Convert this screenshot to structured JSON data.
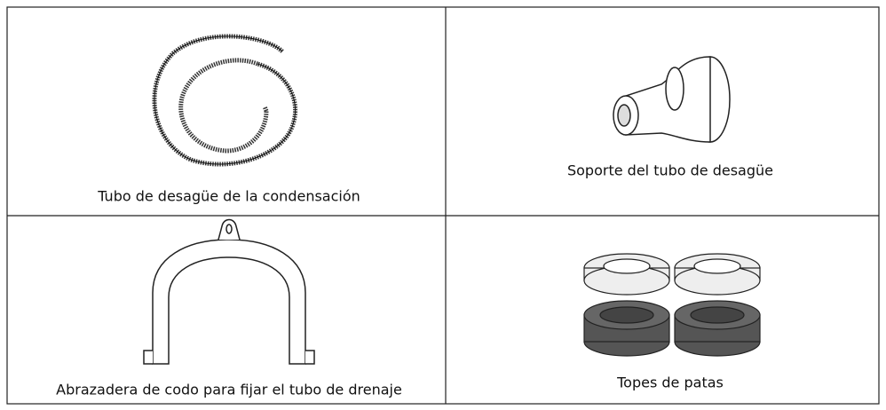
{
  "table": {
    "rows": [
      [
        "Tubo de desagüe de la condensación",
        "Soporte del tubo de desagüe"
      ],
      [
        "Abrazadera de codo para fijar el tubo de drenaje",
        "Topes de patas"
      ]
    ]
  }
}
